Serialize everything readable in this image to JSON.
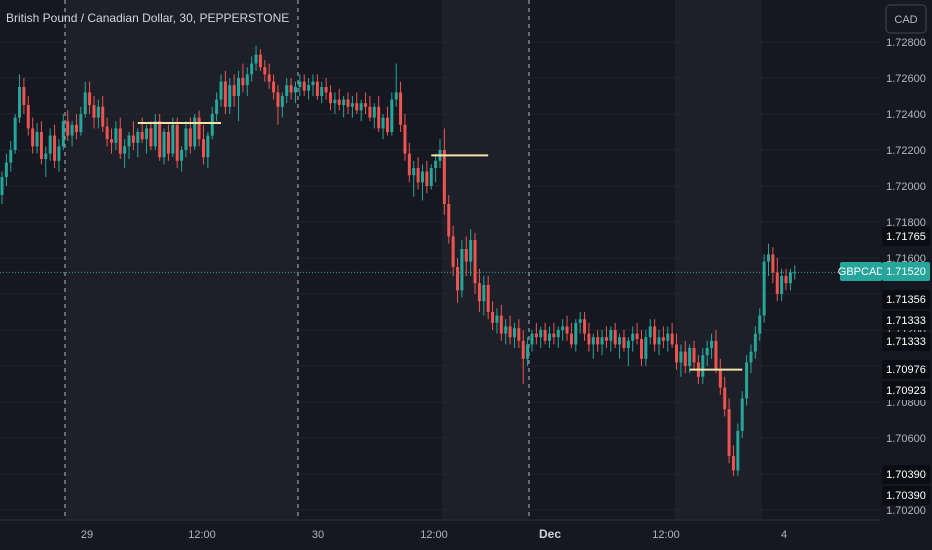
{
  "header": {
    "title": "British Pound / Canadian Dollar, 30, PEPPERSTONE"
  },
  "currency_button": {
    "label": "CAD"
  },
  "colors": {
    "background": "#151821",
    "up": "#26a69a",
    "down": "#ef5350",
    "session_shade": "#1e2029",
    "level_line": "#f2e3a6",
    "grid": "#20232d",
    "separator": "#d1d4dc"
  },
  "chart_data": {
    "type": "candlestick",
    "symbol_label": "GBPCAD",
    "last_price": "1.71520",
    "y_axis": {
      "min": 1.702,
      "max": 1.728,
      "ticks": [
        "1.72800",
        "1.72600",
        "1.72400",
        "1.72200",
        "1.72000",
        "1.71800",
        "1.71600",
        "1.71400",
        "1.71200",
        "1.71000",
        "1.70800",
        "1.70600",
        "1.70400",
        "1.70200"
      ]
    },
    "x_axis": {
      "ticks": [
        "29",
        "12:00",
        "30",
        "12:00",
        "Dec",
        "12:00",
        "4"
      ]
    },
    "price_labels": [
      "1.71765",
      "1.71356",
      "1.71333",
      "1.71333",
      "1.70976",
      "1.70923",
      "1.70390",
      "1.70390"
    ],
    "horizontal_levels": [
      {
        "price": 1.7235,
        "from_bar": 31,
        "to_bar": 50
      },
      {
        "price": 1.7217,
        "from_bar": 98,
        "to_bar": 111
      },
      {
        "price": 1.7098,
        "from_bar": 157,
        "to_bar": 169
      }
    ],
    "candles": [
      [
        1.7195,
        1.7208,
        1.719,
        1.7205
      ],
      [
        1.7205,
        1.7218,
        1.72,
        1.7213
      ],
      [
        1.7213,
        1.7225,
        1.7208,
        1.722
      ],
      [
        1.722,
        1.724,
        1.7218,
        1.7238
      ],
      [
        1.7238,
        1.7262,
        1.7235,
        1.7255
      ],
      [
        1.7255,
        1.726,
        1.724,
        1.7245
      ],
      [
        1.7245,
        1.725,
        1.7228,
        1.7232
      ],
      [
        1.7232,
        1.7238,
        1.7218,
        1.7222
      ],
      [
        1.7222,
        1.7235,
        1.7218,
        1.723
      ],
      [
        1.723,
        1.7236,
        1.7212,
        1.7215
      ],
      [
        1.7215,
        1.7222,
        1.7205,
        1.7218
      ],
      [
        1.7218,
        1.7232,
        1.7214,
        1.7228
      ],
      [
        1.7228,
        1.7234,
        1.721,
        1.7214
      ],
      [
        1.7214,
        1.7226,
        1.7208,
        1.7222
      ],
      [
        1.7222,
        1.724,
        1.722,
        1.7236
      ],
      [
        1.7236,
        1.7242,
        1.7225,
        1.7228
      ],
      [
        1.7228,
        1.7236,
        1.7222,
        1.7234
      ],
      [
        1.7234,
        1.724,
        1.7226,
        1.723
      ],
      [
        1.723,
        1.7244,
        1.7228,
        1.724
      ],
      [
        1.724,
        1.7258,
        1.7238,
        1.7252
      ],
      [
        1.7252,
        1.7258,
        1.724,
        1.7245
      ],
      [
        1.7245,
        1.725,
        1.7232,
        1.7238
      ],
      [
        1.7238,
        1.7248,
        1.7232,
        1.7244
      ],
      [
        1.7244,
        1.725,
        1.723,
        1.7233
      ],
      [
        1.7233,
        1.7238,
        1.7222,
        1.7226
      ],
      [
        1.7226,
        1.7232,
        1.7218,
        1.7224
      ],
      [
        1.7224,
        1.7236,
        1.722,
        1.7232
      ],
      [
        1.7232,
        1.7238,
        1.7215,
        1.7218
      ],
      [
        1.7218,
        1.7226,
        1.721,
        1.7222
      ],
      [
        1.7222,
        1.723,
        1.7215,
        1.7228
      ],
      [
        1.7228,
        1.7236,
        1.722,
        1.7224
      ],
      [
        1.7224,
        1.7232,
        1.7216,
        1.723
      ],
      [
        1.723,
        1.7238,
        1.7224,
        1.7226
      ],
      [
        1.7226,
        1.7234,
        1.7218,
        1.7232
      ],
      [
        1.7232,
        1.7236,
        1.722,
        1.7222
      ],
      [
        1.7222,
        1.724,
        1.722,
        1.7236
      ],
      [
        1.7236,
        1.724,
        1.7214,
        1.7216
      ],
      [
        1.7216,
        1.7232,
        1.7212,
        1.723
      ],
      [
        1.723,
        1.7234,
        1.7214,
        1.7218
      ],
      [
        1.7218,
        1.7238,
        1.7216,
        1.7234
      ],
      [
        1.7234,
        1.7238,
        1.721,
        1.7214
      ],
      [
        1.7214,
        1.7222,
        1.7208,
        1.722
      ],
      [
        1.722,
        1.7236,
        1.7216,
        1.7232
      ],
      [
        1.7232,
        1.7238,
        1.7218,
        1.7222
      ],
      [
        1.7222,
        1.724,
        1.722,
        1.7238
      ],
      [
        1.7238,
        1.7242,
        1.7222,
        1.7226
      ],
      [
        1.7226,
        1.7234,
        1.7212,
        1.7216
      ],
      [
        1.7216,
        1.723,
        1.721,
        1.7228
      ],
      [
        1.7228,
        1.7244,
        1.7226,
        1.724
      ],
      [
        1.724,
        1.7252,
        1.7236,
        1.7248
      ],
      [
        1.7248,
        1.7262,
        1.7244,
        1.7258
      ],
      [
        1.7258,
        1.7264,
        1.724,
        1.7244
      ],
      [
        1.7244,
        1.726,
        1.724,
        1.7256
      ],
      [
        1.7256,
        1.7262,
        1.7244,
        1.725
      ],
      [
        1.725,
        1.7264,
        1.7236,
        1.726
      ],
      [
        1.726,
        1.7268,
        1.7252,
        1.7256
      ],
      [
        1.7256,
        1.7266,
        1.725,
        1.7262
      ],
      [
        1.7262,
        1.7272,
        1.7258,
        1.7268
      ],
      [
        1.7268,
        1.7278,
        1.7264,
        1.7273
      ],
      [
        1.7273,
        1.7276,
        1.7264,
        1.7266
      ],
      [
        1.7266,
        1.727,
        1.7258,
        1.7262
      ],
      [
        1.7262,
        1.7268,
        1.7254,
        1.7258
      ],
      [
        1.7258,
        1.7262,
        1.7248,
        1.7252
      ],
      [
        1.7252,
        1.7256,
        1.7234,
        1.7244
      ],
      [
        1.7244,
        1.7252,
        1.7238,
        1.725
      ],
      [
        1.725,
        1.726,
        1.7246,
        1.7256
      ],
      [
        1.7256,
        1.726,
        1.7248,
        1.7252
      ],
      [
        1.7252,
        1.7258,
        1.7246,
        1.7255
      ],
      [
        1.7255,
        1.7262,
        1.725,
        1.7258
      ],
      [
        1.7258,
        1.7262,
        1.725,
        1.7253
      ],
      [
        1.7253,
        1.726,
        1.7248,
        1.7256
      ],
      [
        1.7256,
        1.7262,
        1.725,
        1.7258
      ],
      [
        1.7258,
        1.7262,
        1.7248,
        1.725
      ],
      [
        1.725,
        1.7258,
        1.7246,
        1.7255
      ],
      [
        1.7255,
        1.726,
        1.7248,
        1.7252
      ],
      [
        1.7252,
        1.7256,
        1.7242,
        1.7246
      ],
      [
        1.7246,
        1.7252,
        1.724,
        1.7248
      ],
      [
        1.7248,
        1.7254,
        1.7242,
        1.7245
      ],
      [
        1.7245,
        1.725,
        1.7238,
        1.7248
      ],
      [
        1.7248,
        1.7252,
        1.724,
        1.7244
      ],
      [
        1.7244,
        1.725,
        1.7238,
        1.7246
      ],
      [
        1.7246,
        1.7252,
        1.724,
        1.7242
      ],
      [
        1.7242,
        1.7248,
        1.7236,
        1.7246
      ],
      [
        1.7246,
        1.7252,
        1.724,
        1.7244
      ],
      [
        1.7244,
        1.725,
        1.7236,
        1.7238
      ],
      [
        1.7238,
        1.7246,
        1.7232,
        1.7244
      ],
      [
        1.7244,
        1.725,
        1.723,
        1.7232
      ],
      [
        1.7232,
        1.724,
        1.7226,
        1.7238
      ],
      [
        1.7238,
        1.7244,
        1.7228,
        1.723
      ],
      [
        1.723,
        1.7252,
        1.7228,
        1.7248
      ],
      [
        1.7248,
        1.7268,
        1.7244,
        1.7252
      ],
      [
        1.7252,
        1.7258,
        1.723,
        1.7234
      ],
      [
        1.7234,
        1.724,
        1.7214,
        1.7218
      ],
      [
        1.7218,
        1.7224,
        1.7202,
        1.7206
      ],
      [
        1.7206,
        1.7214,
        1.7194,
        1.721
      ],
      [
        1.721,
        1.7216,
        1.7198,
        1.7202
      ],
      [
        1.7202,
        1.7212,
        1.7192,
        1.7208
      ],
      [
        1.7208,
        1.7214,
        1.7196,
        1.72
      ],
      [
        1.72,
        1.7212,
        1.7198,
        1.721
      ],
      [
        1.721,
        1.7218,
        1.7202,
        1.7214
      ],
      [
        1.7214,
        1.7226,
        1.721,
        1.722
      ],
      [
        1.722,
        1.7232,
        1.7184,
        1.719
      ],
      [
        1.719,
        1.7195,
        1.7168,
        1.7172
      ],
      [
        1.7172,
        1.7178,
        1.715,
        1.7155
      ],
      [
        1.7155,
        1.716,
        1.7135,
        1.7142
      ],
      [
        1.7142,
        1.717,
        1.7138,
        1.7165
      ],
      [
        1.7165,
        1.7172,
        1.715,
        1.7158
      ],
      [
        1.7158,
        1.7176,
        1.715,
        1.717
      ],
      [
        1.717,
        1.7174,
        1.714,
        1.7146
      ],
      [
        1.7146,
        1.7154,
        1.713,
        1.7136
      ],
      [
        1.7136,
        1.715,
        1.7128,
        1.7145
      ],
      [
        1.7145,
        1.715,
        1.7126,
        1.713
      ],
      [
        1.713,
        1.7136,
        1.712,
        1.7124
      ],
      [
        1.7124,
        1.7132,
        1.7118,
        1.7128
      ],
      [
        1.7128,
        1.7134,
        1.7114,
        1.7118
      ],
      [
        1.7118,
        1.7126,
        1.7112,
        1.7122
      ],
      [
        1.7122,
        1.7128,
        1.7112,
        1.7116
      ],
      [
        1.7116,
        1.7124,
        1.711,
        1.7121
      ],
      [
        1.7121,
        1.7126,
        1.711,
        1.7114
      ],
      [
        1.7114,
        1.712,
        1.709,
        1.7104
      ],
      [
        1.7104,
        1.7116,
        1.71,
        1.7112
      ],
      [
        1.7112,
        1.712,
        1.7108,
        1.7118
      ],
      [
        1.7118,
        1.7124,
        1.7112,
        1.7116
      ],
      [
        1.7116,
        1.7122,
        1.711,
        1.712
      ],
      [
        1.712,
        1.7124,
        1.7112,
        1.7114
      ],
      [
        1.7114,
        1.7122,
        1.711,
        1.7118
      ],
      [
        1.7118,
        1.7124,
        1.7112,
        1.7116
      ],
      [
        1.7116,
        1.7122,
        1.711,
        1.712
      ],
      [
        1.712,
        1.7126,
        1.7114,
        1.7122
      ],
      [
        1.7122,
        1.7128,
        1.7114,
        1.7118
      ],
      [
        1.7118,
        1.7124,
        1.711,
        1.7112
      ],
      [
        1.7112,
        1.7126,
        1.7108,
        1.7124
      ],
      [
        1.7124,
        1.713,
        1.7118,
        1.7126
      ],
      [
        1.7126,
        1.713,
        1.7114,
        1.7118
      ],
      [
        1.7118,
        1.7124,
        1.7108,
        1.7112
      ],
      [
        1.7112,
        1.7118,
        1.7104,
        1.7116
      ],
      [
        1.7116,
        1.712,
        1.7108,
        1.7112
      ],
      [
        1.7112,
        1.712,
        1.7106,
        1.7116
      ],
      [
        1.7116,
        1.7122,
        1.711,
        1.7114
      ],
      [
        1.7114,
        1.7122,
        1.7108,
        1.712
      ],
      [
        1.712,
        1.7124,
        1.711,
        1.7112
      ],
      [
        1.7112,
        1.7118,
        1.7104,
        1.7116
      ],
      [
        1.7116,
        1.712,
        1.7108,
        1.711
      ],
      [
        1.711,
        1.7116,
        1.71,
        1.7114
      ],
      [
        1.7114,
        1.7122,
        1.7108,
        1.7118
      ],
      [
        1.7118,
        1.7124,
        1.7112,
        1.7115
      ],
      [
        1.7115,
        1.712,
        1.71,
        1.7104
      ],
      [
        1.7104,
        1.712,
        1.71,
        1.7116
      ],
      [
        1.7116,
        1.7126,
        1.7112,
        1.7122
      ],
      [
        1.7122,
        1.7126,
        1.7108,
        1.7112
      ],
      [
        1.7112,
        1.712,
        1.7106,
        1.7116
      ],
      [
        1.7116,
        1.7122,
        1.711,
        1.7114
      ],
      [
        1.7114,
        1.7122,
        1.7108,
        1.7118
      ],
      [
        1.7118,
        1.7124,
        1.711,
        1.7112
      ],
      [
        1.7112,
        1.7118,
        1.7098,
        1.7102
      ],
      [
        1.7102,
        1.7112,
        1.7094,
        1.7108
      ],
      [
        1.7108,
        1.7114,
        1.7096,
        1.71
      ],
      [
        1.71,
        1.7112,
        1.7096,
        1.711
      ],
      [
        1.711,
        1.7114,
        1.7098,
        1.7102
      ],
      [
        1.7102,
        1.7106,
        1.709,
        1.7094
      ],
      [
        1.7094,
        1.711,
        1.709,
        1.7106
      ],
      [
        1.7106,
        1.7114,
        1.71,
        1.711
      ],
      [
        1.711,
        1.7118,
        1.7104,
        1.7114
      ],
      [
        1.7114,
        1.712,
        1.7096,
        1.7098
      ],
      [
        1.7098,
        1.7104,
        1.7084,
        1.7088
      ],
      [
        1.7088,
        1.7094,
        1.7072,
        1.7076
      ],
      [
        1.7076,
        1.7082,
        1.7046,
        1.705
      ],
      [
        1.705,
        1.7056,
        1.7039,
        1.7042
      ],
      [
        1.7042,
        1.7068,
        1.7039,
        1.7064
      ],
      [
        1.7064,
        1.7086,
        1.706,
        1.7082
      ],
      [
        1.7082,
        1.7106,
        1.7078,
        1.7102
      ],
      [
        1.7102,
        1.7112,
        1.7096,
        1.7108
      ],
      [
        1.7108,
        1.7122,
        1.7104,
        1.7118
      ],
      [
        1.7118,
        1.7132,
        1.7114,
        1.7128
      ],
      [
        1.7128,
        1.7162,
        1.7124,
        1.7158
      ],
      [
        1.7158,
        1.7168,
        1.715,
        1.7162
      ],
      [
        1.7162,
        1.7166,
        1.7146,
        1.7152
      ],
      [
        1.7152,
        1.716,
        1.7136,
        1.714
      ],
      [
        1.714,
        1.7154,
        1.7136,
        1.715
      ],
      [
        1.715,
        1.7154,
        1.7142,
        1.7146
      ],
      [
        1.7146,
        1.7154,
        1.7142,
        1.7152
      ],
      [
        1.7152,
        1.7156,
        1.7148,
        1.7152
      ]
    ]
  }
}
